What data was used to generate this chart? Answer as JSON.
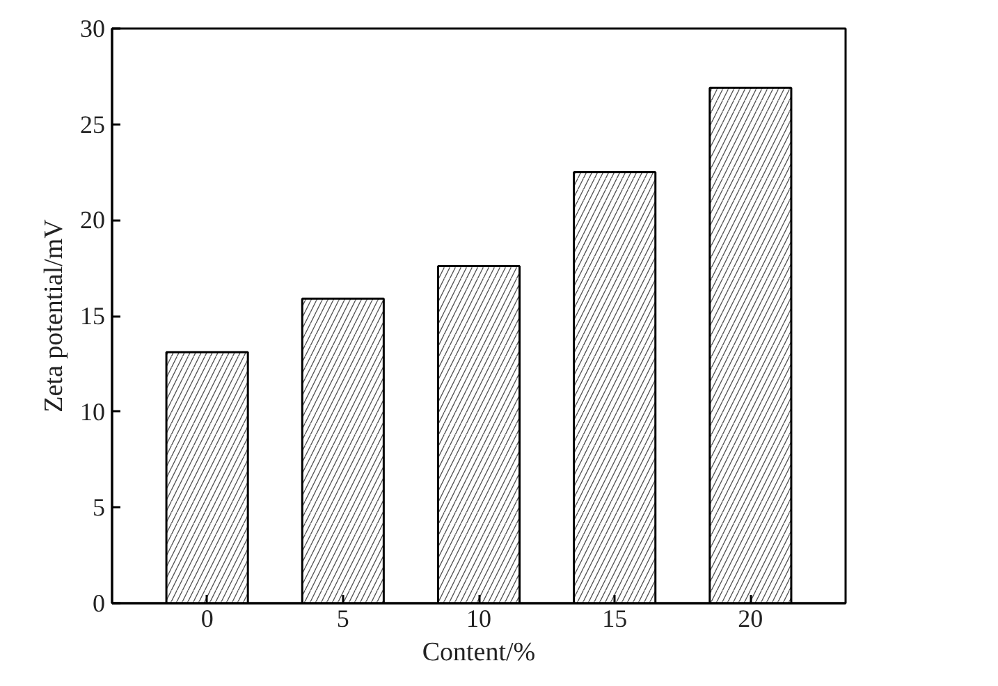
{
  "chart_data": {
    "type": "bar",
    "xlabel": "Content/%",
    "ylabel": "Zeta potential/mV",
    "categories": [
      "0",
      "5",
      "10",
      "15",
      "20"
    ],
    "values": [
      13.1,
      15.9,
      17.6,
      22.5,
      26.9
    ],
    "color": "#ffffff",
    "ylim": [
      0,
      30
    ],
    "yticks": [
      0,
      5,
      10,
      15,
      20,
      25,
      30
    ],
    "grid": false
  }
}
